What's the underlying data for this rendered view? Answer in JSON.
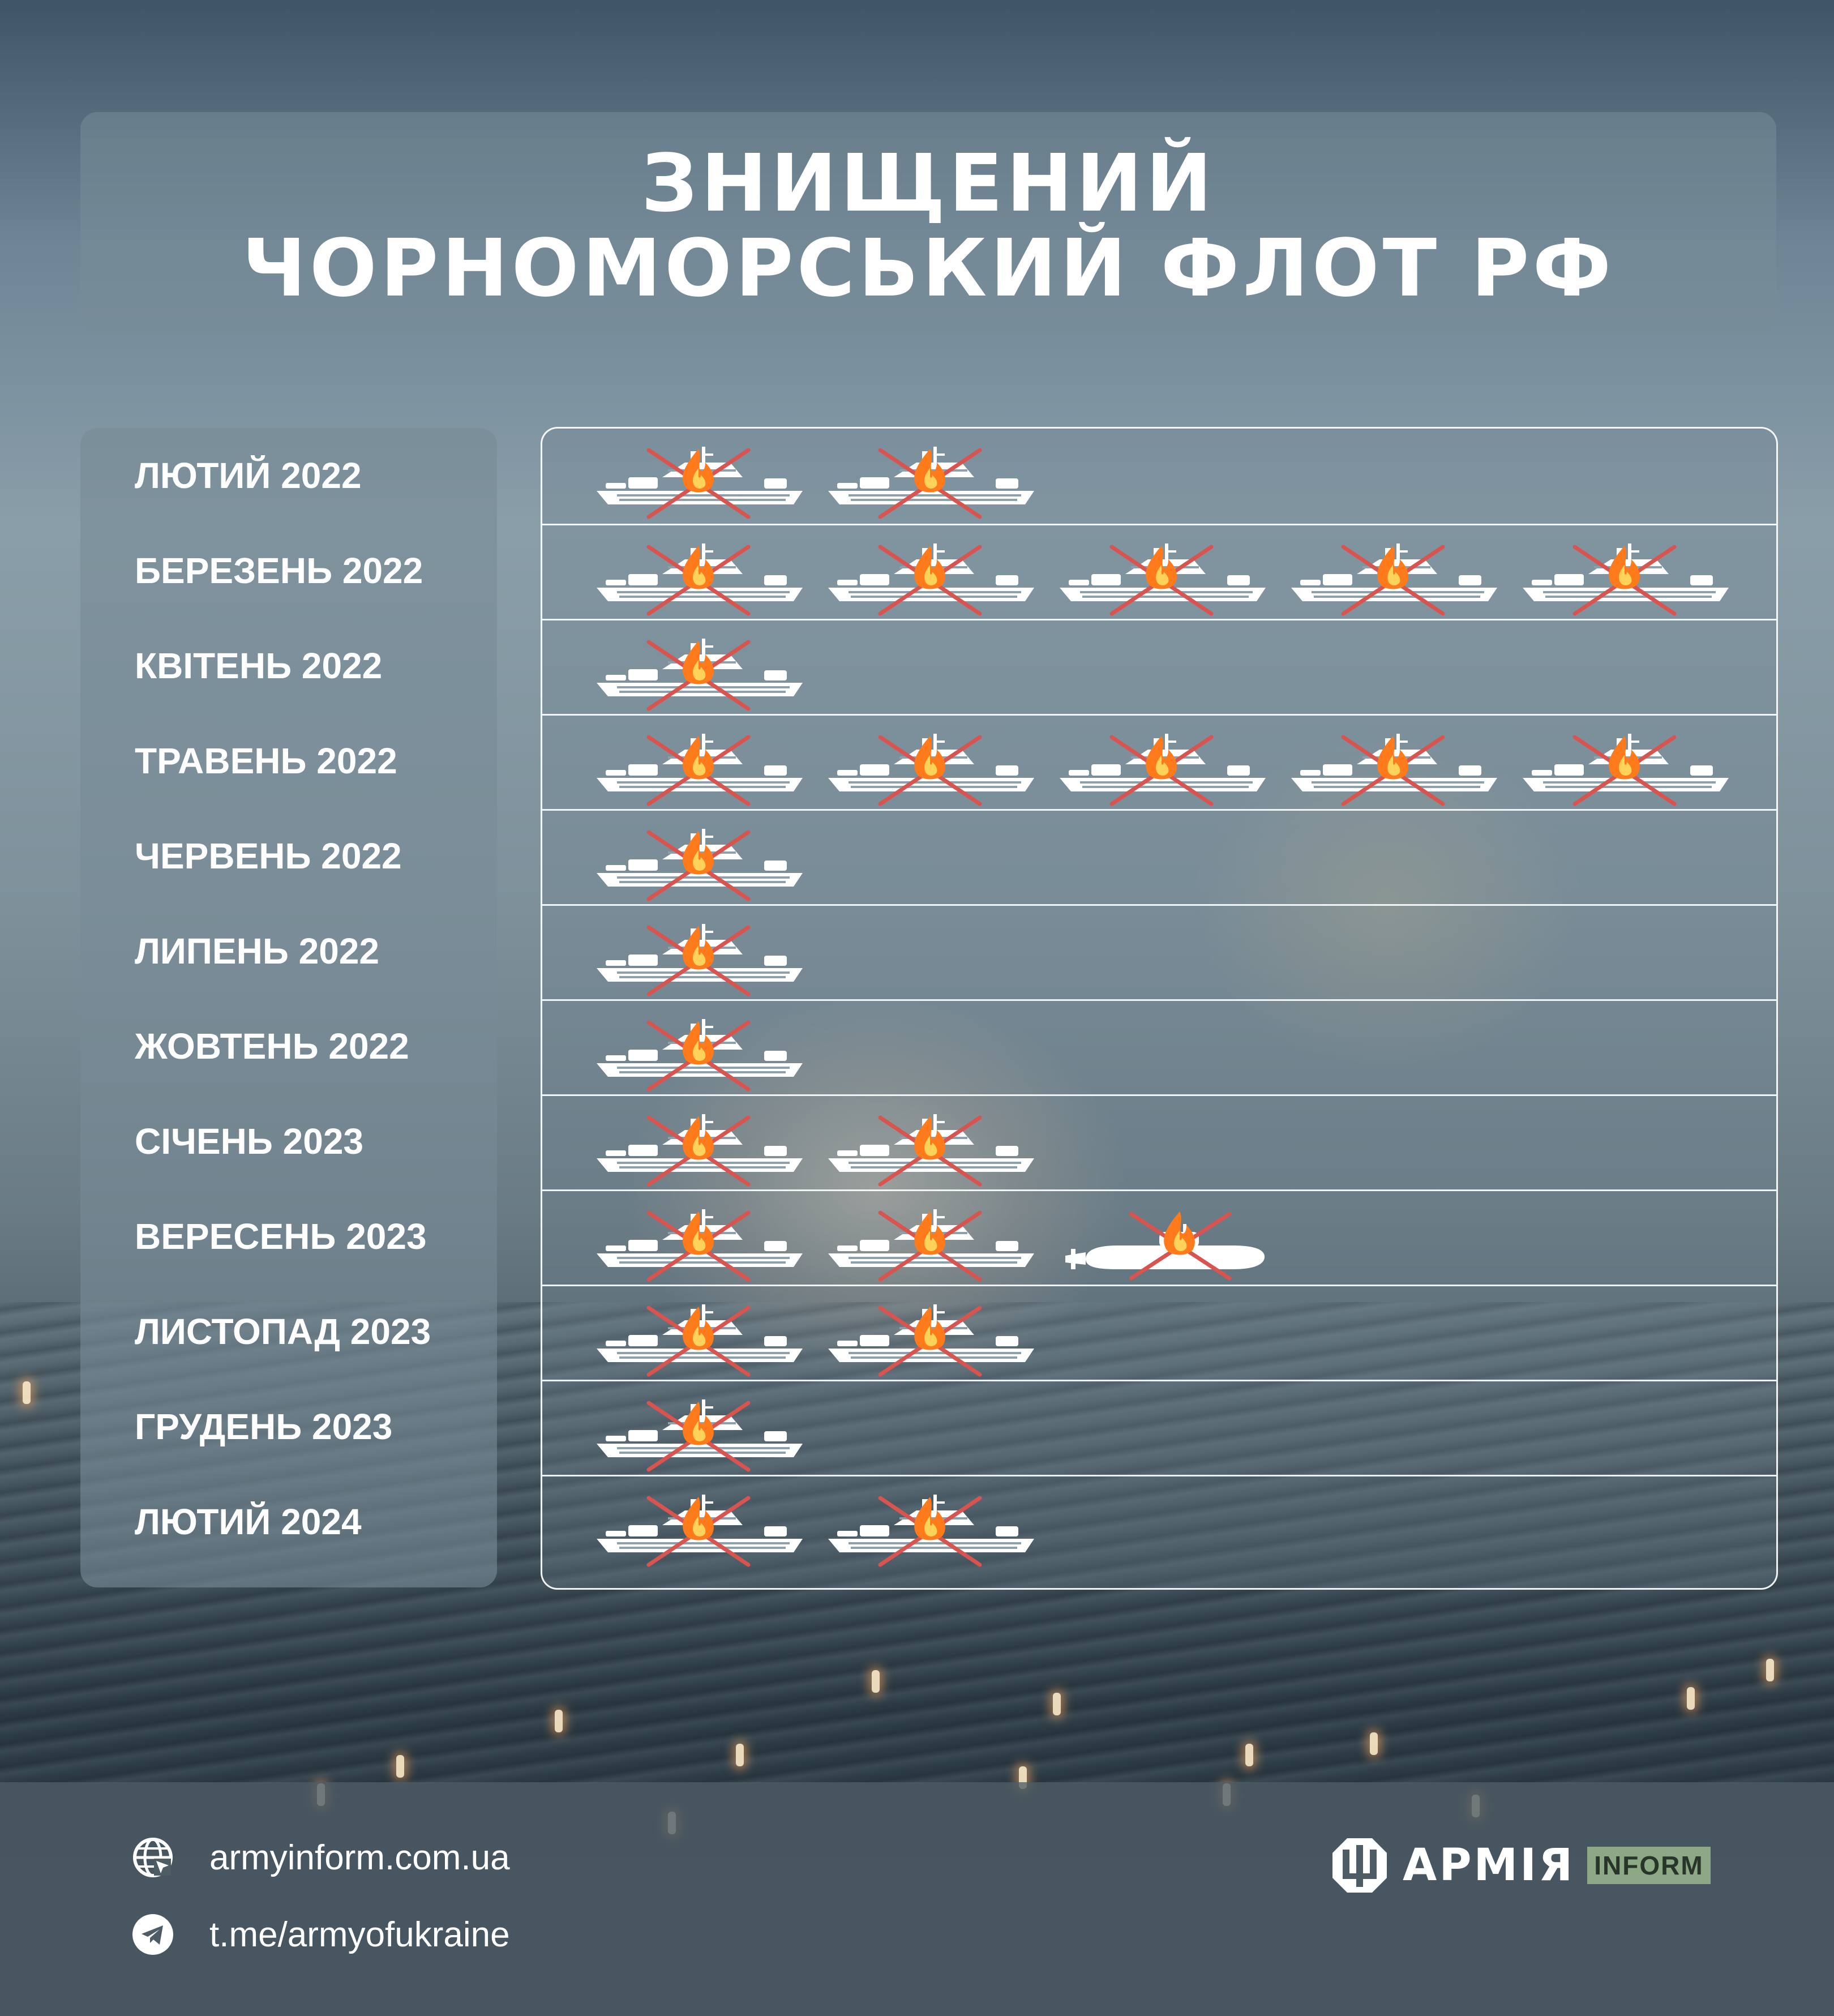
{
  "header": {
    "title_line1": "ЗНИЩЕНИЙ",
    "title_line2": "ЧОРНОМОРСЬКИЙ ФЛОТ РФ"
  },
  "vessel_icon": "burning-ship-crossed-icon",
  "submarine_icon": "burning-submarine-crossed-icon",
  "colors": {
    "cross": "#d9534f",
    "fire": "#ff7a1a",
    "ship": "#ffffff"
  },
  "rows": [
    {
      "month": "ЛЮТИЙ 2022",
      "vessels": [
        "ship",
        "ship"
      ]
    },
    {
      "month": "БЕРЕЗЕНЬ 2022",
      "vessels": [
        "ship",
        "ship",
        "ship",
        "ship",
        "ship"
      ]
    },
    {
      "month": "КВІТЕНЬ 2022",
      "vessels": [
        "ship"
      ]
    },
    {
      "month": "ТРАВЕНЬ 2022",
      "vessels": [
        "ship",
        "ship",
        "ship",
        "ship",
        "ship"
      ]
    },
    {
      "month": "ЧЕРВЕНЬ 2022",
      "vessels": [
        "ship"
      ]
    },
    {
      "month": "ЛИПЕНЬ 2022",
      "vessels": [
        "ship"
      ]
    },
    {
      "month": "ЖОВТЕНЬ 2022",
      "vessels": [
        "ship"
      ]
    },
    {
      "month": "СІЧЕНЬ 2023",
      "vessels": [
        "ship",
        "ship"
      ]
    },
    {
      "month": "ВЕРЕСЕНЬ 2023",
      "vessels": [
        "ship",
        "ship",
        "submarine"
      ]
    },
    {
      "month": "ЛИСТОПАД 2023",
      "vessels": [
        "ship",
        "ship"
      ]
    },
    {
      "month": "ГРУДЕНЬ 2023",
      "vessels": [
        "ship"
      ]
    },
    {
      "month": "ЛЮТИЙ 2024",
      "vessels": [
        "ship",
        "ship"
      ]
    }
  ],
  "footer": {
    "website": "armyinform.com.ua",
    "telegram": "t.me/armyofukraine",
    "website_icon": "globe-icon",
    "telegram_icon": "telegram-icon",
    "brand_name": "АРМІЯ",
    "brand_tag": "INFORM"
  }
}
